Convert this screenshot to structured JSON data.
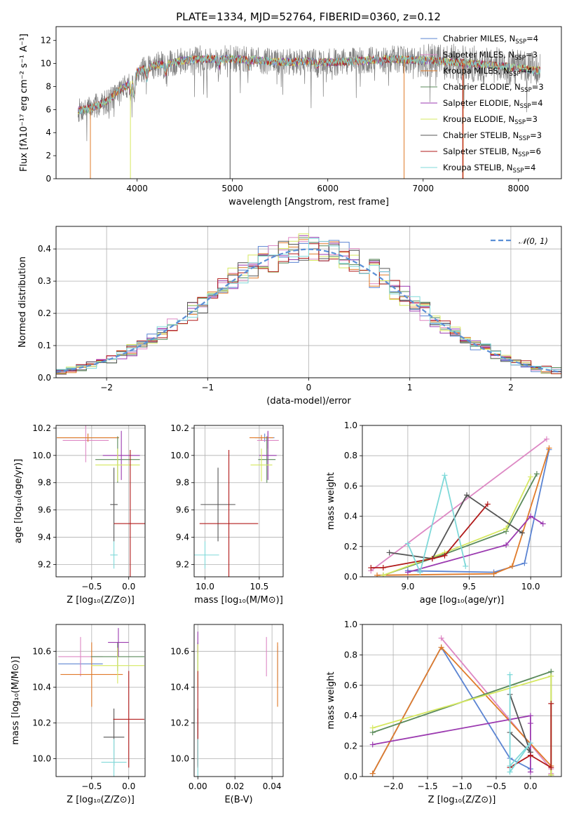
{
  "figure": {
    "title": "PLATE=1334, MJD=52764, FIBERID=0360, z=0.12"
  },
  "colors": {
    "Chabrier MILES": "#5b84d2",
    "Salpeter MILES": "#dd88c4",
    "Kroupa MILES": "#e07b2a",
    "Chabrier ELODIE": "#5a8a5a",
    "Salpeter ELODIE": "#9b3ab0",
    "Kroupa ELODIE": "#d6e860",
    "Chabrier STELIB": "#555555",
    "Salpeter STELIB": "#b11a1a",
    "Kroupa STELIB": "#7fd9d9"
  },
  "chart_data": [
    {
      "id": "spectrum",
      "type": "line",
      "title": "PLATE=1334, MJD=52764, FIBERID=0360, z=0.12",
      "xlabel": "wavelength [Angstrom, rest frame]",
      "ylabel": "Flux [fλ10⁻¹⁷ erg cm⁻² s⁻¹ A⁻¹]",
      "xlim": [
        3150,
        8450
      ],
      "ylim": [
        0,
        13.2
      ],
      "xticks": [
        4000,
        5000,
        6000,
        7000,
        8000
      ],
      "yticks": [
        0,
        2,
        4,
        6,
        8,
        10,
        12
      ],
      "legend_position": "top-right",
      "series": [
        {
          "name": "Chabrier MILES, N_SSP=4",
          "label_main": "Chabrier MILES, N",
          "label_sub": "SSP",
          "label_end": "=4"
        },
        {
          "name": "Salpeter MILES, N_SSP=3",
          "label_main": "Salpeter MILES, N",
          "label_sub": "SSP",
          "label_end": "=3"
        },
        {
          "name": "Kroupa MILES, N_SSP=4",
          "label_main": "Kroupa MILES, N",
          "label_sub": "SSP",
          "label_end": "=4"
        },
        {
          "name": "Chabrier ELODIE, N_SSP=3",
          "label_main": "Chabrier ELODIE, N",
          "label_sub": "SSP",
          "label_end": "=3"
        },
        {
          "name": "Salpeter ELODIE, N_SSP=4",
          "label_main": "Salpeter ELODIE, N",
          "label_sub": "SSP",
          "label_end": "=4"
        },
        {
          "name": "Kroupa ELODIE, N_SSP=3",
          "label_main": "Kroupa ELODIE, N",
          "label_sub": "SSP",
          "label_end": "=3"
        },
        {
          "name": "Chabrier STELIB, N_SSP=3",
          "label_main": "Chabrier STELIB, N",
          "label_sub": "SSP",
          "label_end": "=3"
        },
        {
          "name": "Salpeter STELIB, N_SSP=6",
          "label_main": "Salpeter STELIB, N",
          "label_sub": "SSP",
          "label_end": "=6"
        },
        {
          "name": "Kroupa STELIB, N_SSP=4",
          "label_main": "Kroupa STELIB, N",
          "label_sub": "SSP",
          "label_end": "=4"
        }
      ],
      "continuum": [
        [
          3380,
          5.9
        ],
        [
          3500,
          6.1
        ],
        [
          3600,
          6.4
        ],
        [
          3700,
          6.8
        ],
        [
          3800,
          7.6
        ],
        [
          3900,
          8.1
        ],
        [
          4000,
          9.3
        ],
        [
          4100,
          9.6
        ],
        [
          4200,
          9.9
        ],
        [
          4300,
          9.9
        ],
        [
          4400,
          10.1
        ],
        [
          4500,
          10.3
        ],
        [
          4700,
          10.4
        ],
        [
          5000,
          10.4
        ],
        [
          5200,
          10.3
        ],
        [
          5500,
          10.1
        ],
        [
          5800,
          10.2
        ],
        [
          6000,
          10.1
        ],
        [
          6300,
          10.2
        ],
        [
          6600,
          10.4
        ],
        [
          6900,
          10.3
        ],
        [
          7200,
          10.2
        ],
        [
          7500,
          10.0
        ],
        [
          7800,
          9.8
        ],
        [
          8000,
          9.6
        ],
        [
          8200,
          9.4
        ]
      ],
      "absorption_features": [
        [
          3934,
          7.2
        ],
        [
          3968,
          7.0
        ],
        [
          4102,
          8.5
        ],
        [
          4300,
          9.1
        ],
        [
          4861,
          9.6
        ],
        [
          5175,
          9.6
        ],
        [
          5893,
          9.7
        ],
        [
          6563,
          10.0
        ]
      ]
    },
    {
      "id": "residuals",
      "type": "histogram",
      "xlabel": "(data-model)/error",
      "ylabel": "Normed distribution",
      "xlim": [
        -2.5,
        2.5
      ],
      "ylim": [
        0,
        0.47
      ],
      "xticks": [
        -2,
        -1,
        0,
        1,
        2
      ],
      "yticks": [
        0.0,
        0.1,
        0.2,
        0.3,
        0.4
      ],
      "legend": "𝒩(0, 1)",
      "bin_width": 0.1
    },
    {
      "id": "age-vs-Z",
      "type": "scatter",
      "xlabel": "Z [log₁₀(Z/Z⊙)]",
      "ylabel": "age  [log₁₀(age/yr)]",
      "xlim": [
        -0.98,
        0.22
      ],
      "ylim": [
        9.11,
        10.22
      ],
      "xticks": [
        -0.5,
        0.0
      ],
      "yticks": [
        9.2,
        9.4,
        9.6,
        9.8,
        10.0,
        10.2
      ],
      "points": [
        {
          "series": "Chabrier MILES",
          "x": -0.55,
          "xerr": 0.42,
          "y": 10.13,
          "yerr": 0.03
        },
        {
          "series": "Salpeter MILES",
          "x": -0.58,
          "xerr": 0.31,
          "y": 10.11,
          "yerr": 0.16
        },
        {
          "series": "Kroupa MILES",
          "x": -0.55,
          "xerr": 0.42,
          "y": 10.13,
          "yerr": 0.03
        },
        {
          "series": "Chabrier ELODIE",
          "x": -0.15,
          "xerr": 0.3,
          "y": 9.97,
          "yerr": 0.17
        },
        {
          "series": "Salpeter ELODIE",
          "x": -0.1,
          "xerr": 0.25,
          "y": 10.0,
          "yerr": 0.18
        },
        {
          "series": "Kroupa ELODIE",
          "x": -0.15,
          "xerr": 0.3,
          "y": 9.93,
          "yerr": 0.12
        },
        {
          "series": "Chabrier STELIB",
          "x": -0.2,
          "xerr": 0.05,
          "y": 9.64,
          "yerr": 0.27
        },
        {
          "series": "Salpeter STELIB",
          "x": 0.02,
          "xerr": 0.22,
          "y": 9.5,
          "yerr": 0.54
        },
        {
          "series": "Kroupa STELIB",
          "x": -0.2,
          "xerr": 0.05,
          "y": 9.27,
          "yerr": 0.1
        }
      ]
    },
    {
      "id": "age-vs-mass",
      "type": "scatter",
      "xlabel": "mass [log₁₀(M/M⊙)]",
      "ylabel": "",
      "xlim": [
        9.9,
        10.72
      ],
      "ylim": [
        9.11,
        10.22
      ],
      "xticks": [
        10.0,
        10.5
      ],
      "yticks": [
        9.2,
        9.4,
        9.6,
        9.8,
        10.0,
        10.2
      ],
      "points": [
        {
          "series": "Chabrier MILES",
          "x": 10.55,
          "xerr": 0.09,
          "y": 10.13,
          "yerr": 0.03
        },
        {
          "series": "Salpeter MILES",
          "x": 10.58,
          "xerr": 0.1,
          "y": 10.11,
          "yerr": 0.06
        },
        {
          "series": "Kroupa MILES",
          "x": 10.52,
          "xerr": 0.11,
          "y": 10.13,
          "yerr": 0.02
        },
        {
          "series": "Chabrier ELODIE",
          "x": 10.57,
          "xerr": 0.08,
          "y": 9.97,
          "yerr": 0.17
        },
        {
          "series": "Salpeter ELODIE",
          "x": 10.58,
          "xerr": 0.08,
          "y": 10.0,
          "yerr": 0.18
        },
        {
          "series": "Kroupa ELODIE",
          "x": 10.52,
          "xerr": 0.1,
          "y": 9.93,
          "yerr": 0.12
        },
        {
          "series": "Chabrier STELIB",
          "x": 10.12,
          "xerr": 0.16,
          "y": 9.64,
          "yerr": 0.27
        },
        {
          "series": "Salpeter STELIB",
          "x": 10.22,
          "xerr": 0.27,
          "y": 9.5,
          "yerr": 0.54
        },
        {
          "series": "Kroupa STELIB",
          "x": 10.0,
          "xerr": 0.13,
          "y": 9.27,
          "yerr": 0.1
        }
      ]
    },
    {
      "id": "weights-vs-age",
      "type": "line",
      "xlabel": "age  [log₁₀(age/yr)]",
      "ylabel": "mass weight",
      "xlim": [
        8.63,
        10.25
      ],
      "ylim": [
        0.0,
        1.0
      ],
      "xticks": [
        9.0,
        9.5,
        10.0
      ],
      "yticks": [
        0.0,
        0.2,
        0.4,
        0.6,
        0.8,
        1.0
      ],
      "series": [
        {
          "name": "Chabrier MILES",
          "x": [
            9.0,
            9.7,
            9.95,
            10.15
          ],
          "y": [
            0.04,
            0.03,
            0.09,
            0.84
          ]
        },
        {
          "name": "Salpeter MILES",
          "x": [
            8.7,
            10.13
          ],
          "y": [
            0.04,
            0.91
          ]
        },
        {
          "name": "Kroupa MILES",
          "x": [
            8.75,
            9.7,
            9.85,
            10.15
          ],
          "y": [
            0.01,
            0.02,
            0.07,
            0.85
          ]
        },
        {
          "name": "Chabrier ELODIE",
          "x": [
            8.8,
            9.3,
            9.8,
            10.05
          ],
          "y": [
            0.01,
            0.15,
            0.3,
            0.68
          ]
        },
        {
          "name": "Salpeter ELODIE",
          "x": [
            9.0,
            9.8,
            10.0,
            10.1
          ],
          "y": [
            0.03,
            0.21,
            0.4,
            0.35
          ]
        },
        {
          "name": "Kroupa ELODIE",
          "x": [
            8.8,
            9.3,
            9.8,
            10.0
          ],
          "y": [
            0.01,
            0.16,
            0.32,
            0.66
          ]
        },
        {
          "name": "Chabrier STELIB",
          "x": [
            8.85,
            9.2,
            9.48,
            9.93
          ],
          "y": [
            0.16,
            0.12,
            0.54,
            0.29
          ]
        },
        {
          "name": "Salpeter STELIB",
          "x": [
            8.7,
            8.8,
            9.2,
            9.3,
            9.65
          ],
          "y": [
            0.06,
            0.06,
            0.12,
            0.14,
            0.48
          ]
        },
        {
          "name": "Kroupa STELIB",
          "x": [
            9.0,
            9.1,
            9.3,
            9.47
          ],
          "y": [
            0.22,
            0.03,
            0.67,
            0.07
          ]
        }
      ]
    },
    {
      "id": "mass-vs-Z",
      "type": "scatter",
      "xlabel": "Z [log₁₀(Z/Z⊙)]",
      "ylabel": "mass [log₁₀(M/M⊙)]",
      "xlim": [
        -0.98,
        0.22
      ],
      "ylim": [
        9.9,
        10.75
      ],
      "xticks": [
        -0.5,
        0.0
      ],
      "yticks": [
        10.0,
        10.2,
        10.4,
        10.6
      ],
      "points": [
        {
          "series": "Chabrier MILES",
          "x": -0.65,
          "xerr": 0.3,
          "y": 10.53,
          "yerr": 0.02
        },
        {
          "series": "Salpeter MILES",
          "x": -0.65,
          "xerr": 0.3,
          "y": 10.57,
          "yerr": 0.11
        },
        {
          "series": "Kroupa MILES",
          "x": -0.5,
          "xerr": 0.42,
          "y": 10.47,
          "yerr": 0.18
        },
        {
          "series": "Chabrier ELODIE",
          "x": -0.15,
          "xerr": 0.36,
          "y": 10.57,
          "yerr": 0.08
        },
        {
          "series": "Salpeter ELODIE",
          "x": -0.14,
          "xerr": 0.14,
          "y": 10.65,
          "yerr": 0.08
        },
        {
          "series": "Kroupa ELODIE",
          "x": -0.15,
          "xerr": 0.36,
          "y": 10.52,
          "yerr": 0.1
        },
        {
          "series": "Chabrier STELIB",
          "x": -0.2,
          "xerr": 0.14,
          "y": 10.12,
          "yerr": 0.16
        },
        {
          "series": "Salpeter STELIB",
          "x": 0.0,
          "xerr": 0.21,
          "y": 10.22,
          "yerr": 0.27
        },
        {
          "series": "Kroupa STELIB",
          "x": -0.2,
          "xerr": 0.17,
          "y": 9.98,
          "yerr": 0.13
        }
      ]
    },
    {
      "id": "mass-vs-EBV",
      "type": "scatter",
      "xlabel": "E(B-V)",
      "ylabel": "",
      "xlim": [
        -0.002,
        0.046
      ],
      "ylim": [
        9.9,
        10.75
      ],
      "xticks": [
        0.0,
        0.02,
        0.04
      ],
      "xticklabels": [
        "0.00",
        "0.02",
        "0.04"
      ],
      "yticks": [
        10.0,
        10.2,
        10.4,
        10.6
      ],
      "points": [
        {
          "series": "Chabrier MILES",
          "x": 0.043,
          "xerr": 0,
          "y": 10.53,
          "yerr": 0.1
        },
        {
          "series": "Salpeter MILES",
          "x": 0.037,
          "xerr": 0,
          "y": 10.57,
          "yerr": 0.11
        },
        {
          "series": "Kroupa MILES",
          "x": 0.043,
          "xerr": 0,
          "y": 10.47,
          "yerr": 0.18
        },
        {
          "series": "Chabrier ELODIE",
          "x": 0.0,
          "xerr": 0,
          "y": 10.57,
          "yerr": 0.08
        },
        {
          "series": "Salpeter ELODIE",
          "x": 0.0,
          "xerr": 0,
          "y": 10.65,
          "yerr": 0.06
        },
        {
          "series": "Kroupa ELODIE",
          "x": 0.0,
          "xerr": 0,
          "y": 10.52,
          "yerr": 0.12
        },
        {
          "series": "Chabrier STELIB",
          "x": 0.0,
          "xerr": 0,
          "y": 10.12,
          "yerr": 0.16
        },
        {
          "series": "Salpeter STELIB",
          "x": 0.0,
          "xerr": 0,
          "y": 10.22,
          "yerr": 0.27
        },
        {
          "series": "Kroupa STELIB",
          "x": 0.0,
          "xerr": 0,
          "y": 9.98,
          "yerr": 0.13
        }
      ]
    },
    {
      "id": "weights-vs-Z",
      "type": "line",
      "xlabel": "Z [log₁₀(Z/Z⊙)]",
      "ylabel": "mass weight",
      "xlim": [
        -2.45,
        0.45
      ],
      "ylim": [
        0.0,
        1.0
      ],
      "xticks": [
        -2.0,
        -1.5,
        -1.0,
        -0.5,
        0.0
      ],
      "yticks": [
        0.0,
        0.2,
        0.4,
        0.6,
        0.8,
        1.0
      ],
      "series": [
        {
          "name": "Chabrier MILES",
          "x": [
            -2.3,
            -1.3,
            -0.3,
            0.0
          ],
          "y": [
            0.02,
            0.85,
            0.12,
            0.05
          ]
        },
        {
          "name": "Salpeter MILES",
          "x": [
            -1.3,
            0.3,
            0.3
          ],
          "y": [
            0.91,
            0.05,
            0.02
          ]
        },
        {
          "name": "Kroupa MILES",
          "x": [
            -2.3,
            -1.3,
            0.3,
            0.3
          ],
          "y": [
            0.02,
            0.85,
            0.07,
            0.01
          ]
        },
        {
          "name": "Chabrier ELODIE",
          "x": [
            -2.3,
            0.3,
            0.3
          ],
          "y": [
            0.29,
            0.69,
            0.01
          ]
        },
        {
          "name": "Salpeter ELODIE",
          "x": [
            -2.3,
            0.0,
            0.0,
            0.0
          ],
          "y": [
            0.21,
            0.4,
            0.35,
            0.03
          ]
        },
        {
          "name": "Kroupa ELODIE",
          "x": [
            -2.3,
            0.3,
            0.3
          ],
          "y": [
            0.32,
            0.66,
            0.01
          ]
        },
        {
          "name": "Chabrier STELIB",
          "x": [
            -0.3,
            0.0,
            -0.3
          ],
          "y": [
            0.29,
            0.16,
            0.54
          ]
        },
        {
          "name": "Salpeter STELIB",
          "x": [
            -0.3,
            0.0,
            0.3,
            0.3
          ],
          "y": [
            0.06,
            0.14,
            0.06,
            0.48
          ]
        },
        {
          "name": "Kroupa STELIB",
          "x": [
            -0.3,
            -0.3,
            0.0,
            -0.3
          ],
          "y": [
            0.67,
            0.03,
            0.22,
            0.07
          ]
        }
      ]
    }
  ]
}
